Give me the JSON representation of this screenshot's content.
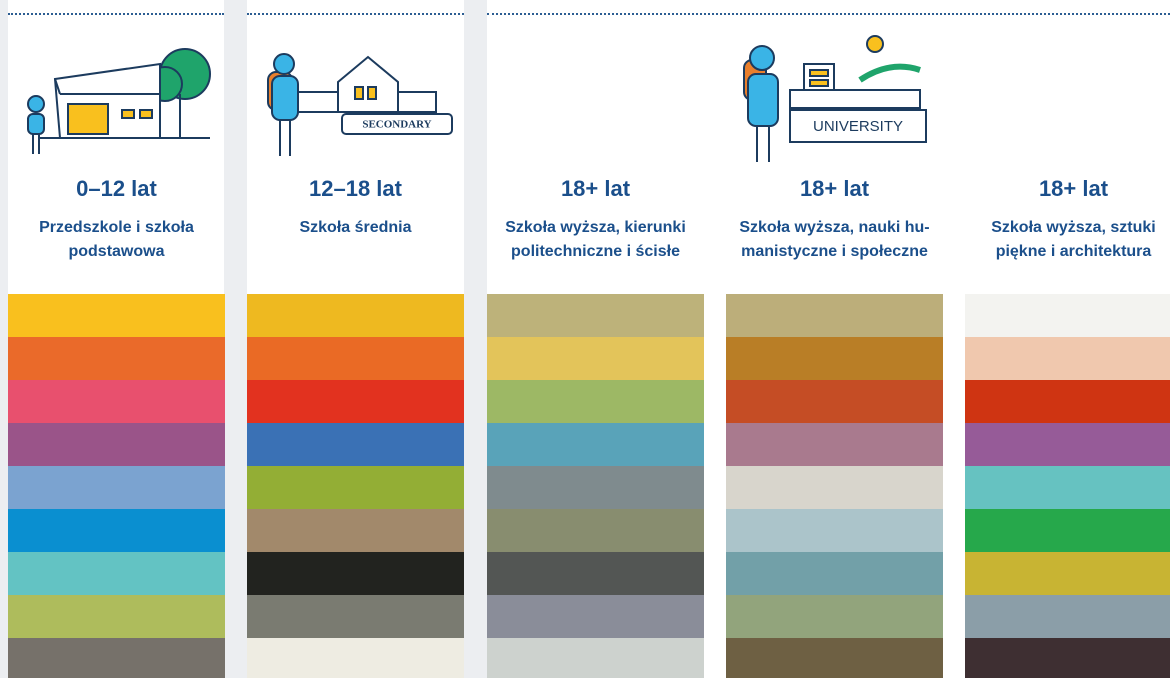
{
  "signs": {
    "secondary": "SECONDARY",
    "university": "UNIVERSITY"
  },
  "columns": [
    {
      "age": "0–12 lat",
      "description": [
        "Przedszkole i szkoła",
        "podstawowa"
      ],
      "colors": [
        "#f9c01e",
        "#ea6a2a",
        "#e8506e",
        "#9a5489",
        "#7ba3d0",
        "#0a8fd0",
        "#63c3c3",
        "#aebc5c",
        "#76716a"
      ]
    },
    {
      "age": "12–18 lat",
      "description": [
        "Szkoła średnia"
      ],
      "colors": [
        "#eeb920",
        "#ea6a25",
        "#e2321f",
        "#3a71b5",
        "#93ae35",
        "#a2896b",
        "#22231f",
        "#7a7b71",
        "#eeece2"
      ]
    },
    {
      "age": "18+ lat",
      "description": [
        "Szkoła wyższa, kierunki",
        "politechniczne i ścisłe"
      ],
      "colors": [
        "#bdb27a",
        "#e3c45a",
        "#9db865",
        "#59a3b9",
        "#7f8b8e",
        "#888d6f",
        "#535654",
        "#8a8d99",
        "#cdd2ce"
      ]
    },
    {
      "age": "18+ lat",
      "description": [
        "Szkoła wyższa, nauki hu-",
        "manistyczne i społeczne"
      ],
      "colors": [
        "#bcae7a",
        "#b97e26",
        "#c54d25",
        "#a97a8e",
        "#d8d5cc",
        "#abc4ca",
        "#72a0a8",
        "#92a47c",
        "#6e6043"
      ]
    },
    {
      "age": "18+ lat",
      "description": [
        "Szkoła wyższa, sztuki",
        "piękne i architektura"
      ],
      "colors": [
        "#f3f3f0",
        "#f0c8ae",
        "#cf3412",
        "#965b98",
        "#66c2c1",
        "#26a84b",
        "#c8b433",
        "#8b9ea8",
        "#3e2f32"
      ]
    }
  ]
}
